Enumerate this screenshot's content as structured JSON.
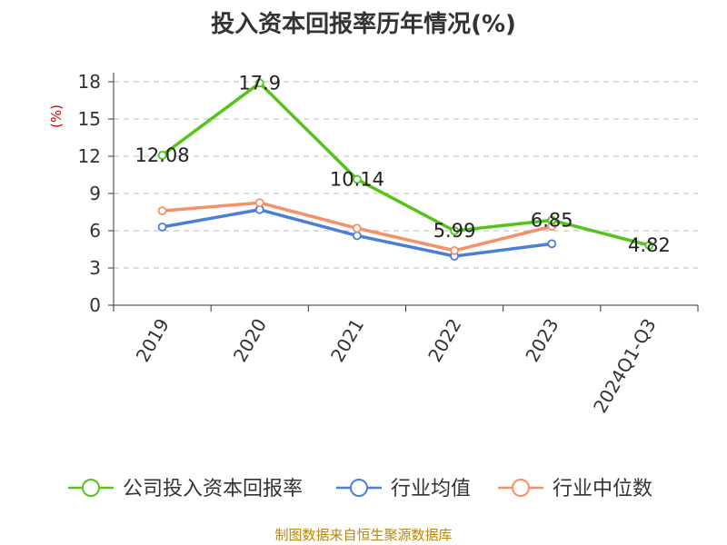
{
  "chart_data": {
    "type": "line",
    "title": "投入资本回报率历年情况(%)",
    "ylabel": "(%)",
    "categories": [
      "2019",
      "2020",
      "2021",
      "2022",
      "2023",
      "2024Q1-Q3"
    ],
    "ylim": [
      0,
      18
    ],
    "yticks": [
      "0",
      "3",
      "6",
      "9",
      "12",
      "15",
      "18"
    ],
    "grid": true,
    "legend_position": "bottom",
    "series": [
      {
        "name": "公司投入资本回报率",
        "color": "#52c41a",
        "values": [
          12.08,
          17.9,
          10.14,
          5.99,
          6.85,
          4.82
        ],
        "labels": [
          "12.08",
          "17.9",
          "10.14",
          "5.99",
          "6.85",
          "4.82"
        ]
      },
      {
        "name": "行业均值",
        "color": "#4a7fd8",
        "values": [
          6.3,
          7.7,
          5.6,
          3.95,
          4.95,
          null
        ]
      },
      {
        "name": "行业中位数",
        "color": "#f4906a",
        "values": [
          7.6,
          8.25,
          6.2,
          4.4,
          6.35,
          null
        ]
      }
    ]
  },
  "source": "制图数据来自恒生聚源数据库"
}
